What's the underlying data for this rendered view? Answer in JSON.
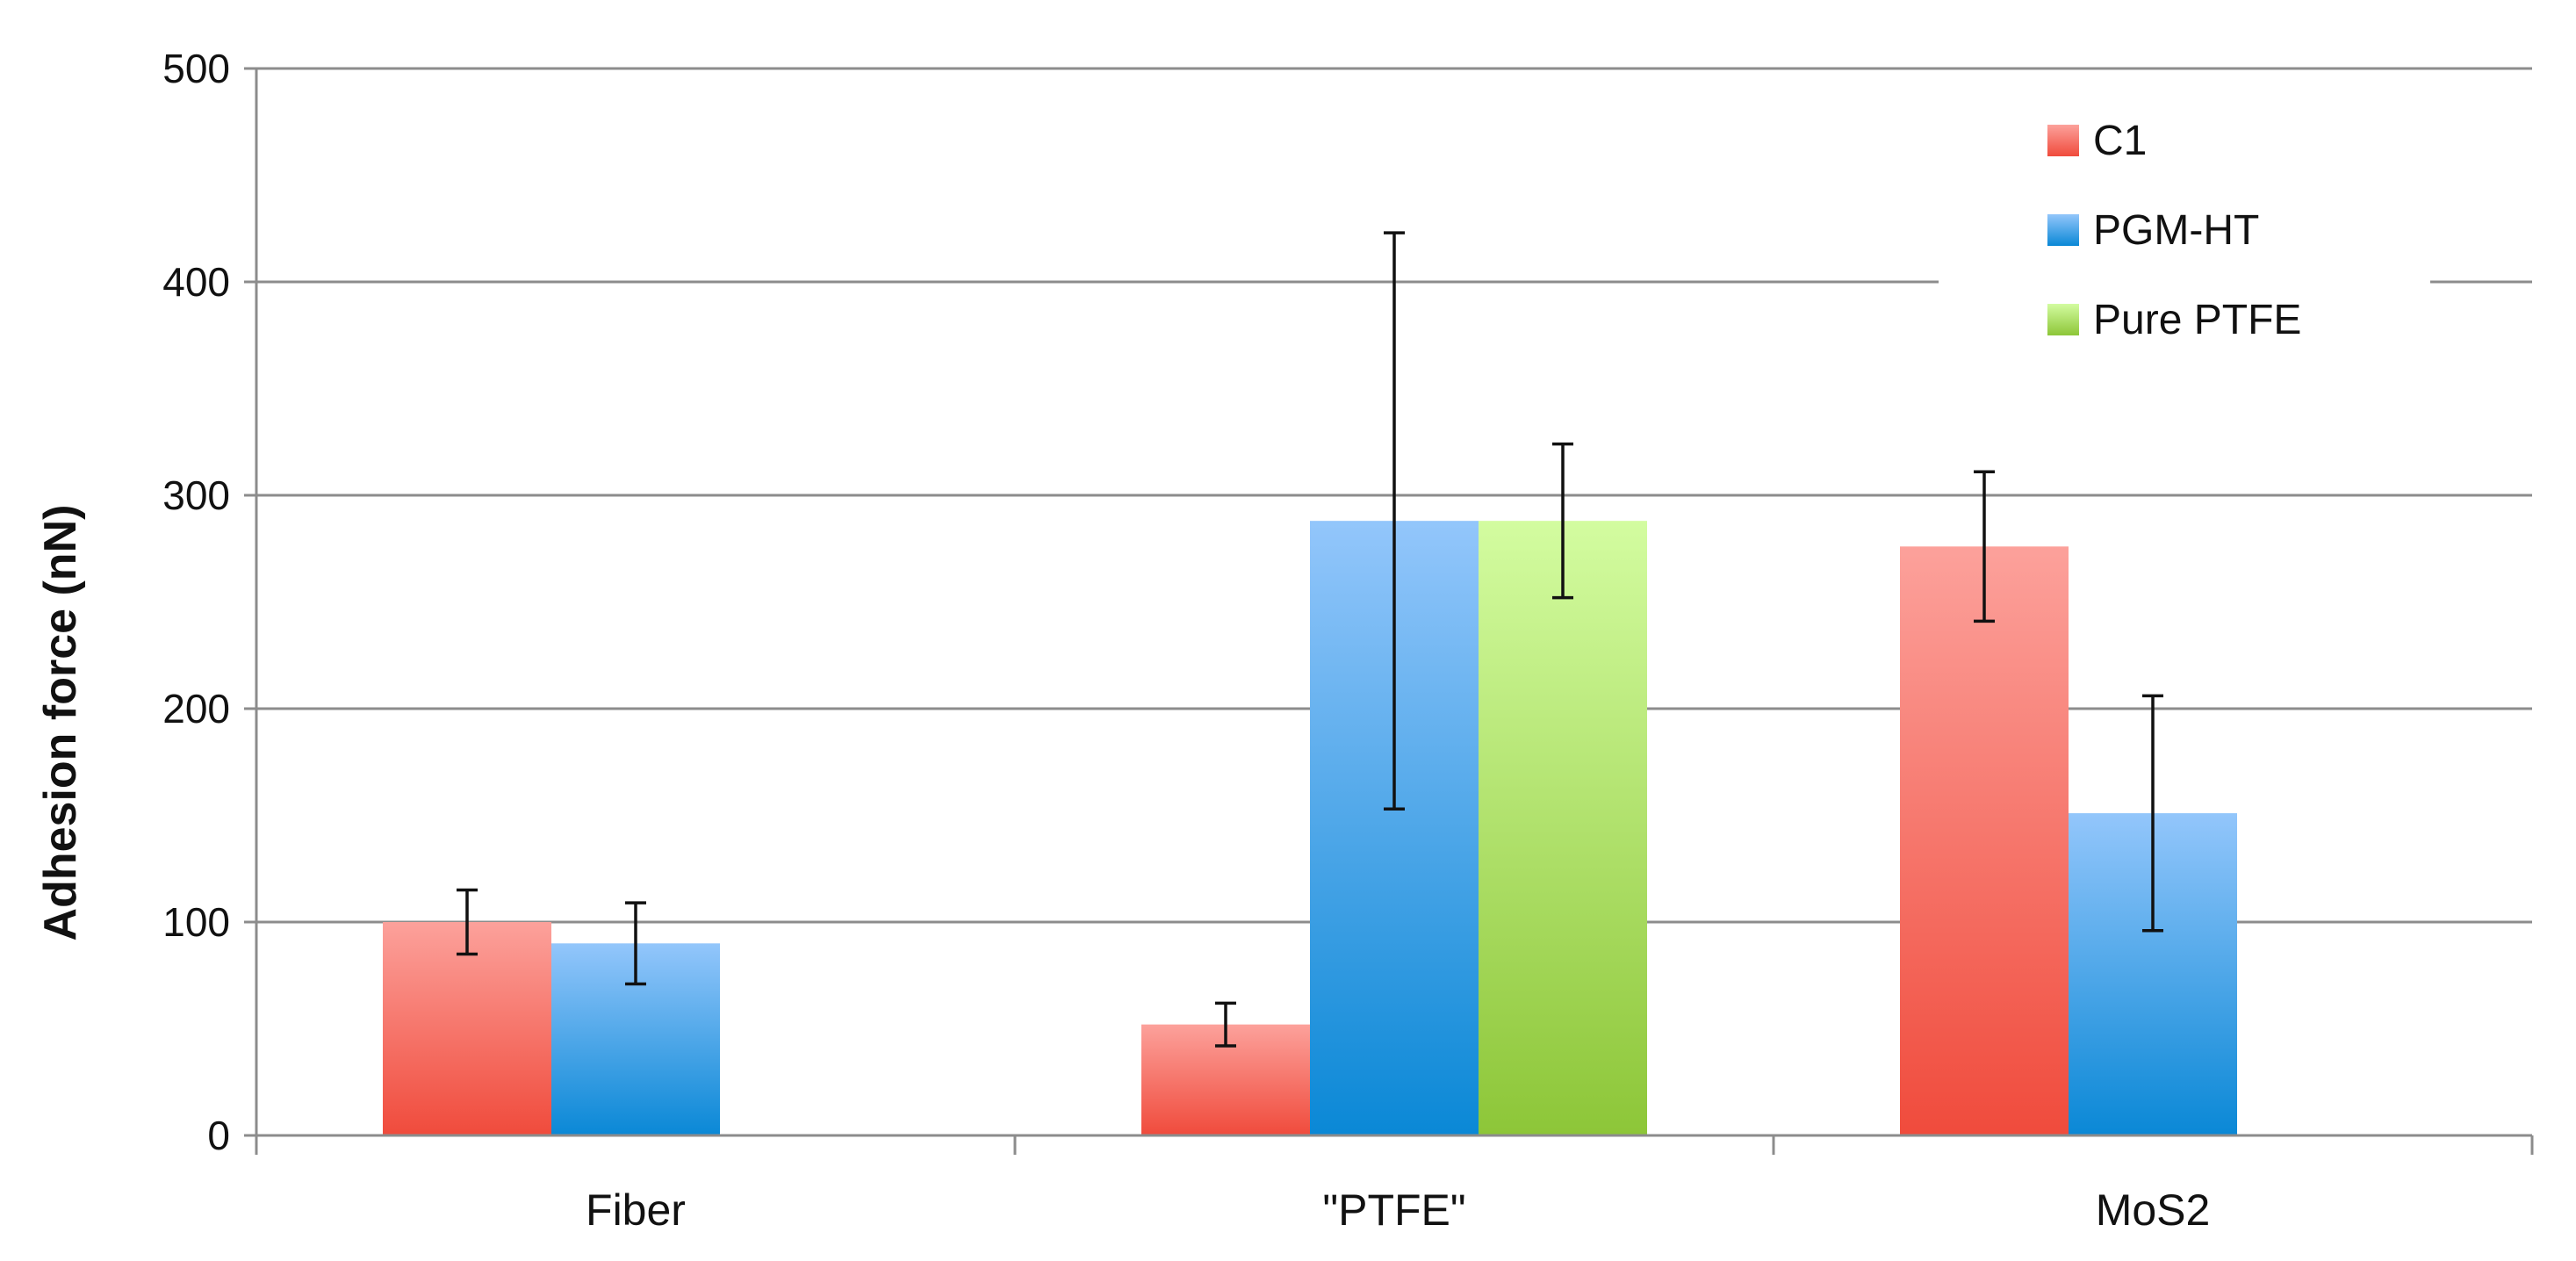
{
  "chart_data": {
    "type": "bar",
    "title": "",
    "xlabel": "",
    "ylabel": "Adhesion force (nN)",
    "ylim": [
      0,
      500
    ],
    "yticks": [
      0,
      100,
      200,
      300,
      400,
      500
    ],
    "grid": true,
    "legend_position": "top-right",
    "categories": [
      "Fiber",
      "\"PTFE\"",
      "MoS2"
    ],
    "series": [
      {
        "name": "C1",
        "color_top": "#fca19b",
        "color_bottom": "#f04b3c",
        "values": [
          100,
          52,
          276
        ],
        "errors": [
          15,
          10,
          35
        ]
      },
      {
        "name": "PGM-HT",
        "color_top": "#93c6fb",
        "color_bottom": "#0a88d6",
        "values": [
          90,
          288,
          151
        ],
        "errors": [
          19,
          135,
          55
        ]
      },
      {
        "name": "Pure PTFE",
        "color_top": "#d3fca0",
        "color_bottom": "#8dc638",
        "values": [
          null,
          288,
          null
        ],
        "errors": [
          null,
          36,
          null
        ]
      }
    ]
  }
}
